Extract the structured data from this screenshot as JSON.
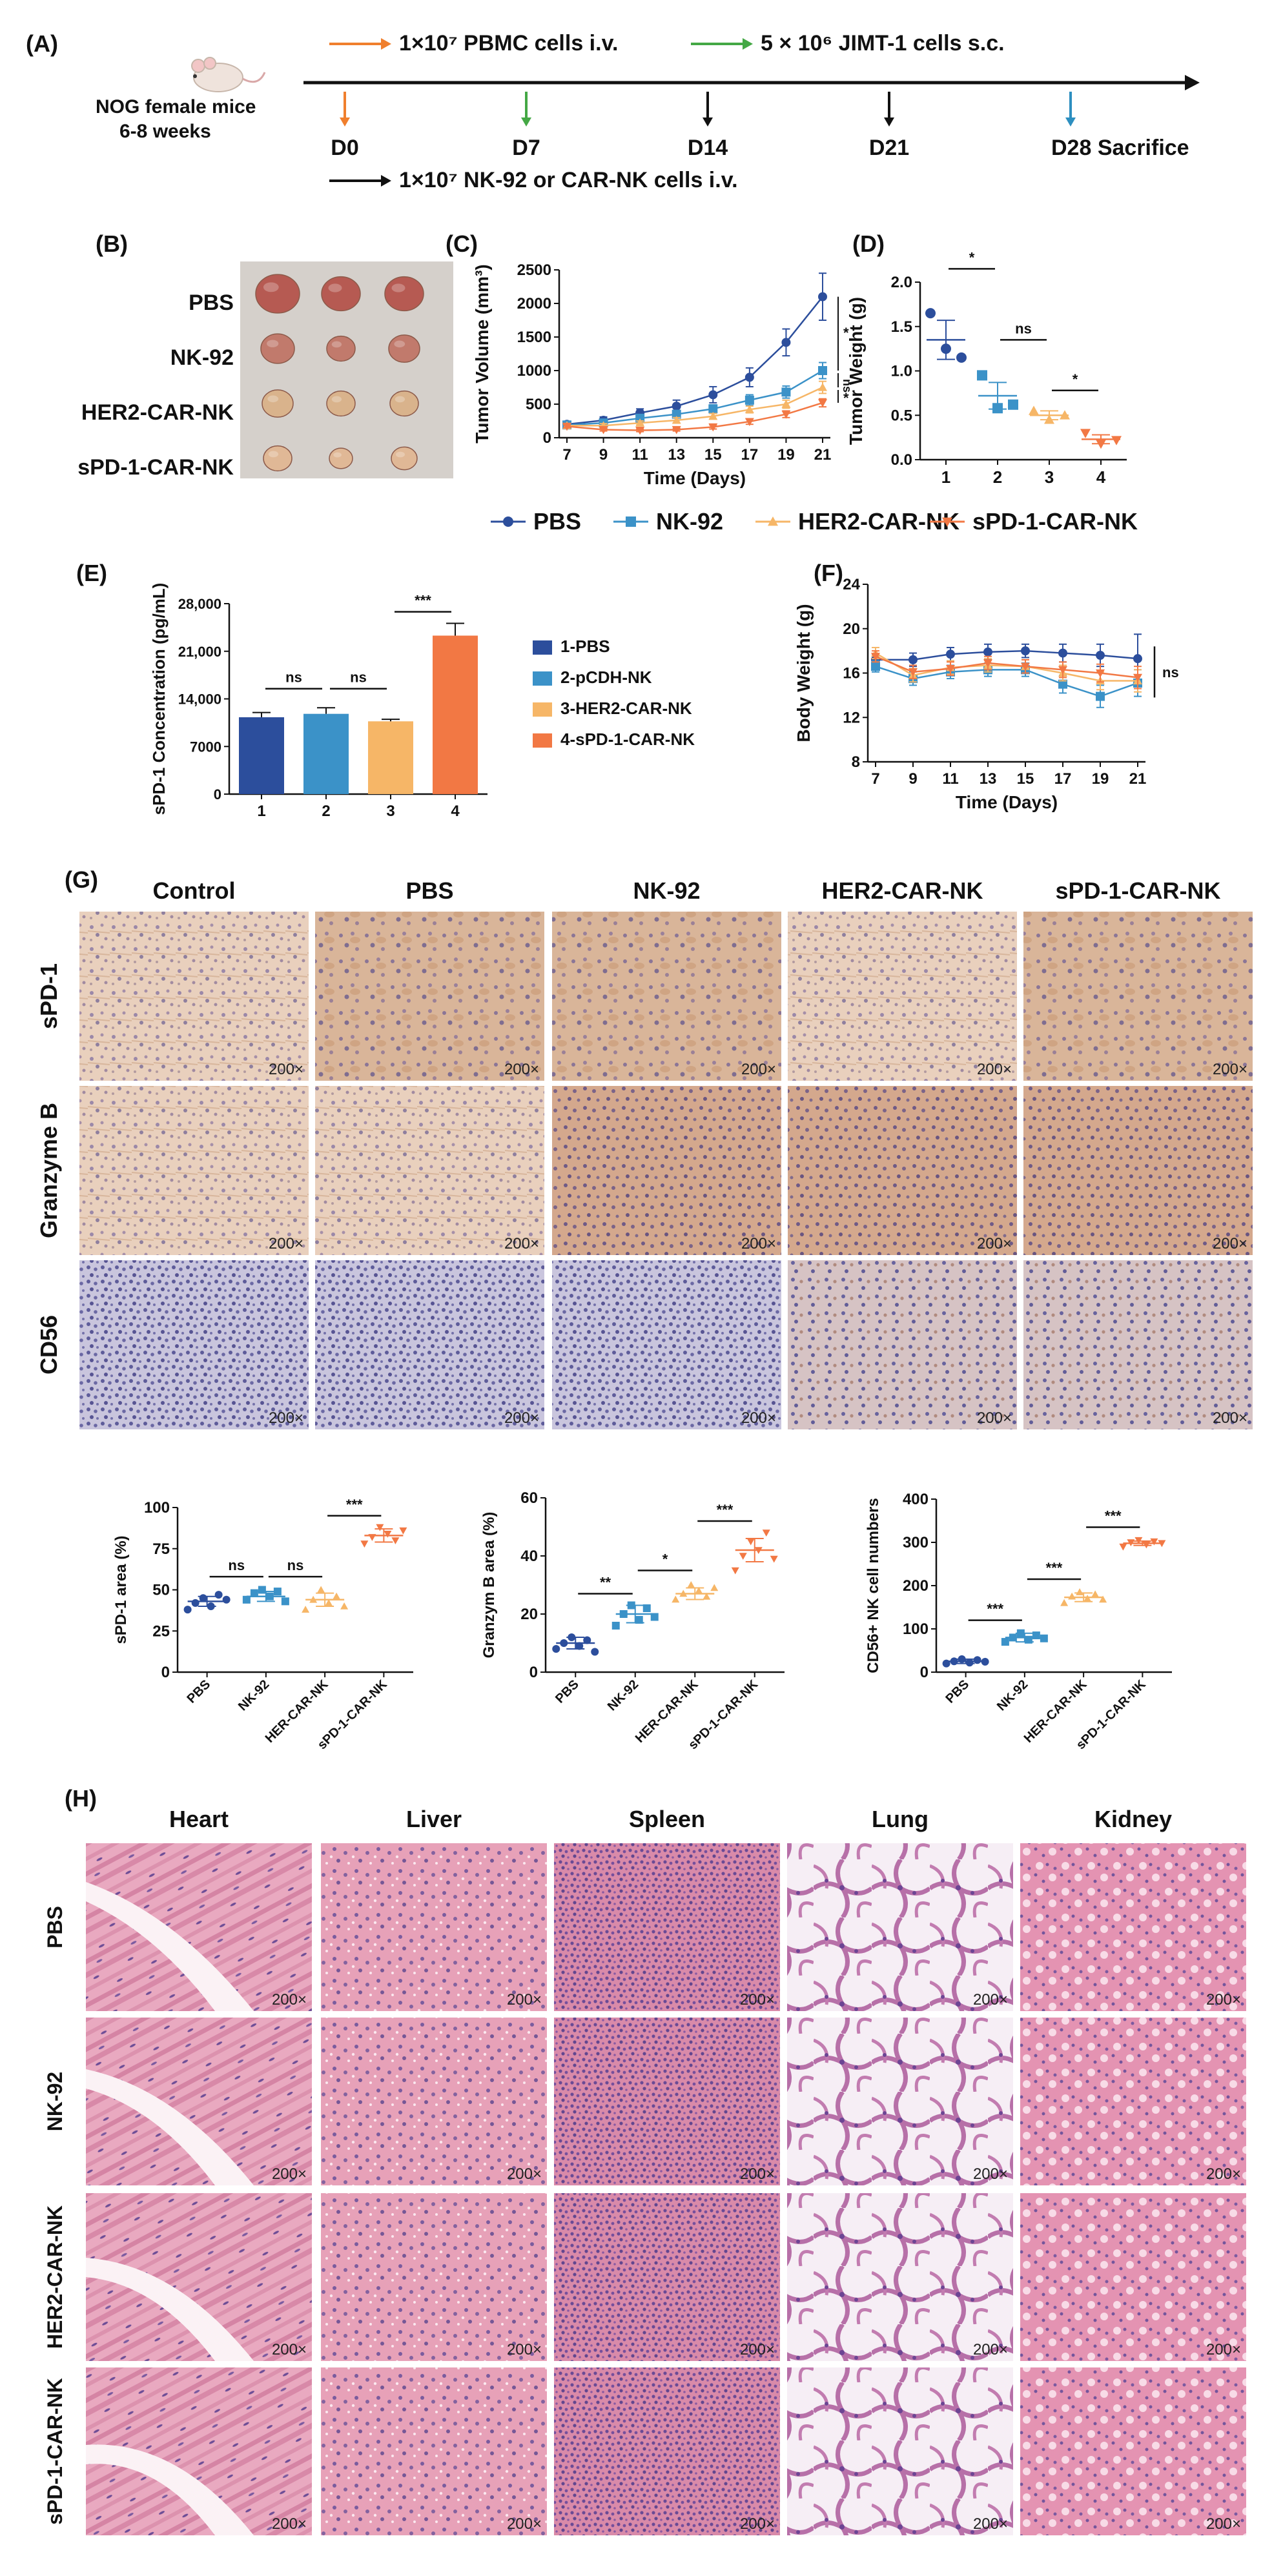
{
  "panels": [
    "(A)",
    "(B)",
    "(C)",
    "(D)",
    "(E)",
    "(F)",
    "(G)",
    "(H)"
  ],
  "timeline": {
    "mice_label_1": "NOG female mice",
    "mice_label_2": "6-8 weeks",
    "legend": [
      {
        "text": "1×10⁷ PBMC cells i.v.",
        "color": "#f07f2d"
      },
      {
        "text": "5 × 10⁶ JIMT-1 cells s.c.",
        "color": "#44a845"
      },
      {
        "text": "1×10⁷ NK-92 or CAR-NK cells i.v.",
        "color": "#111111"
      }
    ],
    "days": [
      {
        "label": "D0",
        "color": "#f07f2d",
        "day": 0
      },
      {
        "label": "D7",
        "color": "#44a845",
        "day": 7
      },
      {
        "label": "D14",
        "color": "#111111",
        "day": 14
      },
      {
        "label": "D21",
        "color": "#111111",
        "day": 21
      },
      {
        "label": "D28 Sacrifice",
        "color": "#2d8fc0",
        "day": 28
      }
    ]
  },
  "photo": {
    "rows": [
      "PBS",
      "NK-92",
      "HER2-CAR-NK",
      "sPD-1-CAR-NK"
    ]
  },
  "colors": {
    "pbs": "#2c4e9c",
    "nk92": "#3b92c8",
    "her2": "#f6b667",
    "spd1": "#f27844"
  },
  "chart_data": [
    {
      "panel": "(C)",
      "type": "line",
      "xlabel": "Time (Days)",
      "ylabel": "Tumor Volume (mm³)",
      "x": [
        7,
        9,
        11,
        13,
        15,
        17,
        19,
        21
      ],
      "xticks": [
        "7",
        "9",
        "11",
        "13",
        "15",
        "17",
        "19",
        "21"
      ],
      "yticks": [
        "0",
        "500",
        "1000",
        "1500",
        "2000",
        "2500"
      ],
      "ylim": [
        0,
        2500
      ],
      "series": [
        {
          "name": "PBS",
          "values": [
            200,
            260,
            370,
            470,
            640,
            900,
            1420,
            2100
          ],
          "err": [
            40,
            50,
            60,
            90,
            120,
            140,
            200,
            350
          ]
        },
        {
          "name": "NK-92",
          "values": [
            190,
            220,
            290,
            350,
            430,
            560,
            680,
            1000
          ],
          "err": [
            30,
            30,
            40,
            50,
            60,
            80,
            90,
            120
          ]
        },
        {
          "name": "HER2-CAR-NK",
          "values": [
            180,
            180,
            220,
            260,
            320,
            420,
            500,
            750
          ],
          "err": [
            30,
            30,
            30,
            40,
            40,
            50,
            60,
            90
          ]
        },
        {
          "name": "sPD-1-CAR-NK",
          "values": [
            170,
            120,
            110,
            120,
            160,
            240,
            350,
            520
          ],
          "err": [
            20,
            20,
            20,
            20,
            30,
            40,
            50,
            60
          ]
        }
      ],
      "significance": [
        "*",
        "ns",
        "*"
      ]
    },
    {
      "panel": "(D)",
      "type": "scatter",
      "ylabel": "Tumor Weight (g)",
      "categories": [
        "1",
        "2",
        "3",
        "4"
      ],
      "yticks": [
        "0.0",
        "0.5",
        "1.0",
        "1.5",
        "2.0"
      ],
      "ylim": [
        0,
        2.0
      ],
      "points": [
        [
          1.65,
          1.25,
          1.15
        ],
        [
          0.95,
          0.58,
          0.62
        ],
        [
          0.55,
          0.45,
          0.5
        ],
        [
          0.3,
          0.18,
          0.22
        ]
      ],
      "means": [
        1.35,
        0.72,
        0.5,
        0.23
      ],
      "sems": [
        0.22,
        0.15,
        0.05,
        0.05
      ],
      "significance": [
        {
          "from": 1,
          "to": 2,
          "label": "*",
          "y": 2.15
        },
        {
          "from": 2,
          "to": 3,
          "label": "ns",
          "y": 1.35
        },
        {
          "from": 3,
          "to": 4,
          "label": "*",
          "y": 0.78
        }
      ]
    },
    {
      "panel": "(E)",
      "type": "bar",
      "ylabel": "sPD-1 Concentration (pg/mL)",
      "categories": [
        "1",
        "2",
        "3",
        "4"
      ],
      "values": [
        11300,
        11800,
        10700,
        23300
      ],
      "err": [
        700,
        900,
        300,
        1800
      ],
      "yticks": [
        "0",
        "7000",
        "14,000",
        "21,000",
        "28,000"
      ],
      "ylim": [
        0,
        28000
      ],
      "legend": [
        "1-PBS",
        "2-pCDH-NK",
        "3-HER2-CAR-NK",
        "4-sPD-1-CAR-NK"
      ],
      "significance": [
        {
          "from": 1,
          "to": 2,
          "label": "ns",
          "y": 15500
        },
        {
          "from": 2,
          "to": 3,
          "label": "ns",
          "y": 15500
        },
        {
          "from": 3,
          "to": 4,
          "label": "***",
          "y": 26800
        }
      ]
    },
    {
      "panel": "(F)",
      "type": "line",
      "xlabel": "Time (Days)",
      "ylabel": "Body Weight (g)",
      "x": [
        7,
        9,
        11,
        13,
        15,
        17,
        19,
        21
      ],
      "xticks": [
        "7",
        "9",
        "11",
        "13",
        "15",
        "17",
        "19",
        "21"
      ],
      "yticks": [
        "8",
        "12",
        "16",
        "20",
        "24"
      ],
      "ylim": [
        8,
        24
      ],
      "series": [
        {
          "name": "PBS",
          "values": [
            17.2,
            17.2,
            17.7,
            17.9,
            18.0,
            17.8,
            17.6,
            17.3
          ],
          "err": [
            0.5,
            0.6,
            0.6,
            0.7,
            0.6,
            0.8,
            1.0,
            2.2
          ]
        },
        {
          "name": "NK-92",
          "values": [
            16.6,
            15.5,
            16.1,
            16.3,
            16.3,
            15.0,
            13.9,
            15.1
          ],
          "err": [
            0.5,
            0.6,
            0.6,
            0.6,
            0.6,
            0.8,
            1.0,
            1.2
          ]
        },
        {
          "name": "HER2-CAR-NK",
          "values": [
            17.8,
            15.8,
            16.5,
            16.7,
            16.6,
            16.0,
            15.3,
            15.3
          ],
          "err": [
            0.5,
            0.6,
            0.6,
            0.6,
            0.6,
            0.7,
            0.8,
            1.0
          ]
        },
        {
          "name": "sPD-1-CAR-NK",
          "values": [
            17.5,
            16.1,
            16.4,
            16.9,
            16.6,
            16.3,
            16.0,
            15.6
          ],
          "err": [
            0.5,
            0.6,
            0.6,
            0.6,
            0.6,
            0.7,
            0.8,
            1.0
          ]
        }
      ],
      "significance": "ns"
    },
    {
      "panel": "(G)",
      "type": "scatter",
      "ylabel": "sPD-1 area (%)",
      "categories": [
        "PBS",
        "NK-92",
        "HER-CAR-NK",
        "sPD-1-CAR-NK"
      ],
      "yticks": [
        "0",
        "25",
        "50",
        "75",
        "100"
      ],
      "ylim": [
        0,
        100
      ],
      "points": [
        [
          38,
          42,
          45,
          40,
          47,
          44
        ],
        [
          44,
          48,
          50,
          46,
          49,
          43
        ],
        [
          38,
          44,
          50,
          42,
          46,
          40
        ],
        [
          78,
          82,
          88,
          84,
          80,
          86
        ]
      ],
      "means": [
        43,
        46,
        44,
        83
      ],
      "sems": [
        3,
        3,
        4,
        4
      ],
      "significance": [
        {
          "from": 1,
          "to": 2,
          "label": "ns",
          "y": 58
        },
        {
          "from": 2,
          "to": 3,
          "label": "ns",
          "y": 58
        },
        {
          "from": 3,
          "to": 4,
          "label": "***",
          "y": 95
        }
      ]
    },
    {
      "panel": "(G)",
      "type": "scatter",
      "ylabel": "Granzym B area (%)",
      "categories": [
        "PBS",
        "NK-92",
        "HER-CAR-NK",
        "sPD-1-CAR-NK"
      ],
      "yticks": [
        "0",
        "20",
        "40",
        "60"
      ],
      "ylim": [
        0,
        60
      ],
      "points": [
        [
          8,
          10,
          12,
          9,
          11,
          7
        ],
        [
          16,
          20,
          23,
          18,
          22,
          19
        ],
        [
          25,
          27,
          30,
          28,
          26,
          29
        ],
        [
          35,
          40,
          45,
          42,
          48,
          39
        ]
      ],
      "means": [
        10,
        20,
        27,
        42
      ],
      "sems": [
        2,
        3,
        2,
        4
      ],
      "significance": [
        {
          "from": 1,
          "to": 2,
          "label": "**",
          "y": 27
        },
        {
          "from": 2,
          "to": 3,
          "label": "*",
          "y": 35
        },
        {
          "from": 3,
          "to": 4,
          "label": "***",
          "y": 52
        }
      ]
    },
    {
      "panel": "(G)",
      "type": "scatter",
      "ylabel": "CD56+ NK cell numbers",
      "categories": [
        "PBS",
        "NK-92",
        "HER-CAR-NK",
        "sPD-1-CAR-NK"
      ],
      "yticks": [
        "0",
        "100",
        "200",
        "300",
        "400"
      ],
      "ylim": [
        0,
        400
      ],
      "points": [
        [
          20,
          25,
          30,
          22,
          28,
          24
        ],
        [
          70,
          80,
          90,
          75,
          85,
          78
        ],
        [
          160,
          175,
          185,
          170,
          180,
          168
        ],
        [
          290,
          300,
          305,
          295,
          302,
          298
        ]
      ],
      "means": [
        25,
        80,
        173,
        298
      ],
      "sems": [
        5,
        10,
        10,
        5
      ],
      "significance": [
        {
          "from": 1,
          "to": 2,
          "label": "***",
          "y": 120
        },
        {
          "from": 2,
          "to": 3,
          "label": "***",
          "y": 215
        },
        {
          "from": 3,
          "to": 4,
          "label": "***",
          "y": 335
        }
      ]
    }
  ],
  "legend_main": [
    "PBS",
    "NK-92",
    "HER2-CAR-NK",
    "sPD-1-CAR-NK"
  ],
  "ihc": {
    "cols": [
      "Control",
      "PBS",
      "NK-92",
      "HER2-CAR-NK",
      "sPD-1-CAR-NK"
    ],
    "rows": [
      "sPD-1",
      "Granzyme B",
      "CD56"
    ],
    "magnification": "200×"
  },
  "he": {
    "cols": [
      "Heart",
      "Liver",
      "Spleen",
      "Lung",
      "Kidney"
    ],
    "rows": [
      "PBS",
      "NK-92",
      "HER2-CAR-NK",
      "sPD-1-CAR-NK"
    ],
    "magnification": "200×"
  }
}
